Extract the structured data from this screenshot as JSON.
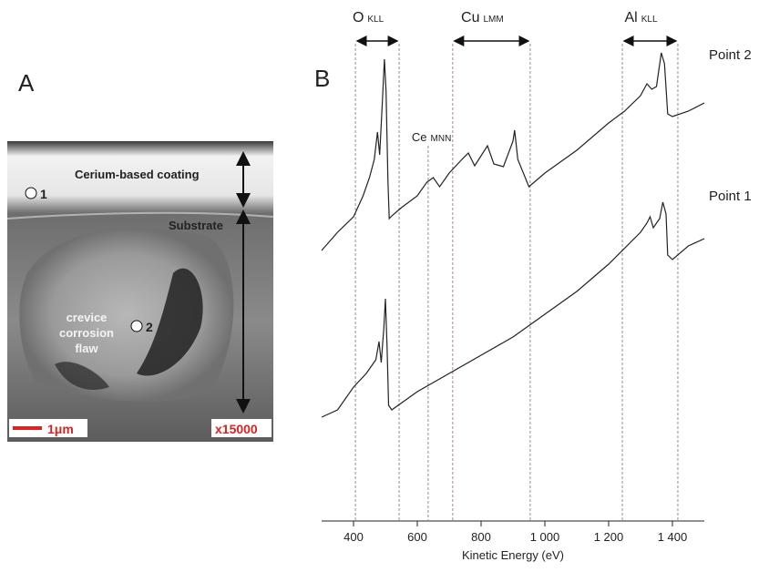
{
  "image_panel": {
    "label": "A",
    "coating": "Cerium-based coating",
    "substrate": "Substrate",
    "flaw": [
      "crevice",
      "corrosion",
      "flaw"
    ],
    "point1": "1",
    "point2": "2",
    "scale": "1μm",
    "magnification": "x15000"
  },
  "chart_data": {
    "type": "line",
    "panel_label": "B",
    "x_label": "Kinetic Energy (eV)",
    "xlim": [
      300,
      1500
    ],
    "ylim": [
      0,
      530
    ],
    "xticks": [
      400,
      600,
      800,
      {
        "value": 1000,
        "label": "1 000"
      },
      {
        "value": 1200,
        "label": "1 200"
      },
      {
        "value": 1400,
        "label": "1 400"
      }
    ],
    "regions": [
      {
        "label": "O",
        "sub": "KLL",
        "span": [
          406,
          543
        ]
      },
      {
        "label": "Cu",
        "sub": "LMM",
        "span": [
          711,
          954
        ]
      },
      {
        "label": "Al",
        "sub": "KLL",
        "span": [
          1243,
          1417
        ]
      }
    ],
    "ce_marker": {
      "label": "Ce",
      "sub": "MNN",
      "x": 634
    },
    "series": [
      {
        "name": "Point 2",
        "color": "#222222",
        "x": [
          300,
          350,
          400,
          430,
          450,
          465,
          475,
          482,
          490,
          497,
          502,
          508,
          512,
          520,
          550,
          600,
          630,
          650,
          670,
          700,
          740,
          760,
          780,
          820,
          840,
          870,
          900,
          905,
          915,
          950,
          1000,
          1100,
          1200,
          1250,
          1300,
          1320,
          1335,
          1350,
          1365,
          1375,
          1385,
          1400,
          1450,
          1500
        ],
        "values": [
          297,
          317,
          334,
          357,
          377,
          397,
          427,
          402,
          457,
          507,
          472,
          372,
          332,
          335,
          344,
          357,
          372,
          377,
          367,
          382,
          397,
          404,
          390,
          412,
          392,
          389,
          417,
          429,
          397,
          367,
          382,
          407,
          437,
          450,
          467,
          480,
          474,
          477,
          514,
          502,
          447,
          444,
          450,
          459
        ]
      },
      {
        "name": "Point 1",
        "color": "#222222",
        "x": [
          300,
          350,
          400,
          440,
          470,
          480,
          487,
          495,
          500,
          505,
          510,
          520,
          600,
          700,
          800,
          900,
          1000,
          1100,
          1200,
          1300,
          1320,
          1330,
          1340,
          1360,
          1370,
          1380,
          1385,
          1400,
          1450,
          1500
        ],
        "values": [
          114,
          122,
          147,
          162,
          177,
          197,
          174,
          212,
          244,
          192,
          127,
          122,
          142,
          162,
          182,
          202,
          227,
          252,
          282,
          317,
          327,
          334,
          322,
          332,
          350,
          337,
          292,
          287,
          302,
          310
        ]
      }
    ]
  }
}
